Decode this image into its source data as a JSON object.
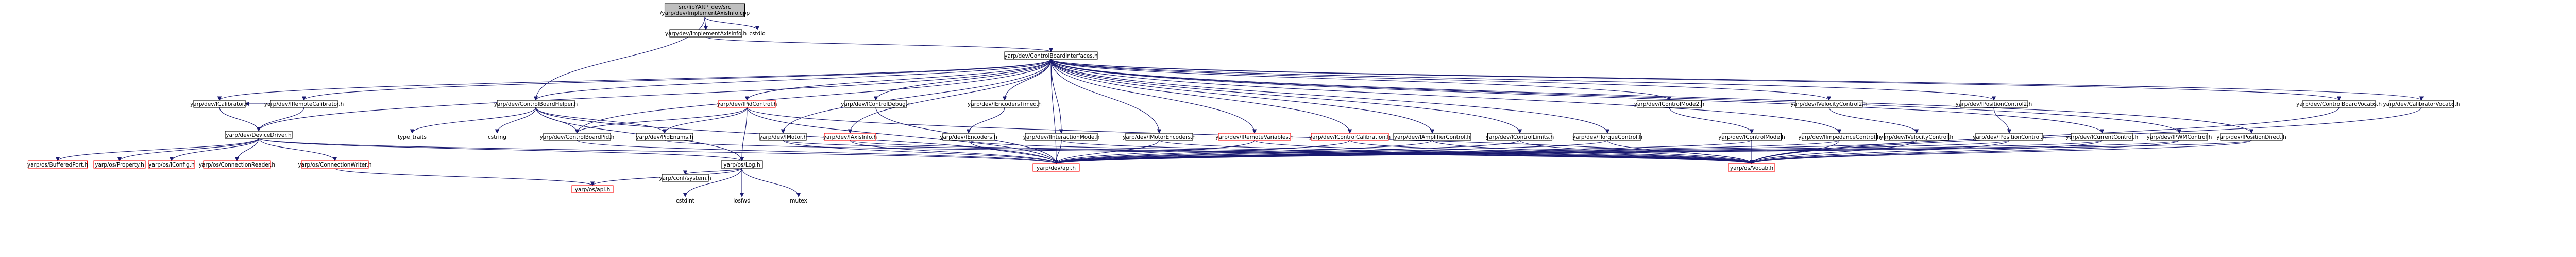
{
  "graph": {
    "root": "src/libYARP_dev/src/yarp/dev/ImplementAxisInfo.cpp",
    "nodes": [
      {
        "id": "root",
        "lines": [
          "src/libYARP_dev/src",
          "/yarp/dev/ImplementAxisInfo.cpp"
        ],
        "style": "root"
      },
      {
        "id": "impl",
        "lines": [
          "yarp/dev/ImplementAxisInfo.h"
        ],
        "style": "black"
      },
      {
        "id": "cstdio",
        "lines": [
          "cstdio"
        ],
        "style": "gray"
      },
      {
        "id": "cbi",
        "lines": [
          "yarp/dev/ControlBoardInterfaces.h"
        ],
        "style": "black"
      },
      {
        "id": "cbh",
        "lines": [
          "yarp/dev/ControlBoardHelper.h"
        ],
        "style": "black"
      },
      {
        "id": "calib",
        "lines": [
          "yarp/dev/ICalibrator.h"
        ],
        "style": "black"
      },
      {
        "id": "remcal",
        "lines": [
          "yarp/dev/IRemoteCalibrator.h"
        ],
        "style": "black"
      },
      {
        "id": "dd",
        "lines": [
          "yarp/dev/DeviceDriver.h"
        ],
        "style": "black"
      },
      {
        "id": "pid",
        "lines": [
          "yarp/dev/IPidControl.h"
        ],
        "style": "red"
      },
      {
        "id": "cdbg",
        "lines": [
          "yarp/dev/IControlDebug.h"
        ],
        "style": "black"
      },
      {
        "id": "enct",
        "lines": [
          "yarp/dev/IEncodersTimed.h"
        ],
        "style": "black"
      },
      {
        "id": "ts",
        "lines": [
          "type_traits"
        ],
        "style": "gray"
      },
      {
        "id": "cstring",
        "lines": [
          "cstring"
        ],
        "style": "gray"
      },
      {
        "id": "cbpid",
        "lines": [
          "yarp/dev/ControlBoardPid.h"
        ],
        "style": "black"
      },
      {
        "id": "pidenum",
        "lines": [
          "yarp/dev/PidEnums.h"
        ],
        "style": "black"
      },
      {
        "id": "motor",
        "lines": [
          "yarp/dev/IMotor.h"
        ],
        "style": "black"
      },
      {
        "id": "axisinfo",
        "lines": [
          "yarp/dev/IAxisInfo.h"
        ],
        "style": "red"
      },
      {
        "id": "enc",
        "lines": [
          "yarp/dev/IEncoders.h"
        ],
        "style": "black"
      },
      {
        "id": "imode",
        "lines": [
          "yarp/dev/IInteractionMode.h"
        ],
        "style": "black"
      },
      {
        "id": "menc",
        "lines": [
          "yarp/dev/IMotorEncoders.h"
        ],
        "style": "black"
      },
      {
        "id": "remvar",
        "lines": [
          "yarp/dev/IRemoteVariables.h"
        ],
        "style": "red"
      },
      {
        "id": "ccal",
        "lines": [
          "yarp/dev/IControlCalibration.h"
        ],
        "style": "red"
      },
      {
        "id": "amp",
        "lines": [
          "yarp/dev/IAmplifierControl.h"
        ],
        "style": "black"
      },
      {
        "id": "clim",
        "lines": [
          "yarp/dev/IControlLimits.h"
        ],
        "style": "black"
      },
      {
        "id": "torque",
        "lines": [
          "yarp/dev/ITorqueControl.h"
        ],
        "style": "black"
      },
      {
        "id": "cmode2",
        "lines": [
          "yarp/dev/IControlMode2.h"
        ],
        "style": "black"
      },
      {
        "id": "cmode",
        "lines": [
          "yarp/dev/IControlMode.h"
        ],
        "style": "black"
      },
      {
        "id": "imped",
        "lines": [
          "yarp/dev/IImpedanceControl.h"
        ],
        "style": "black"
      },
      {
        "id": "vel2",
        "lines": [
          "yarp/dev/IVelocityControl2.h"
        ],
        "style": "black"
      },
      {
        "id": "vel",
        "lines": [
          "yarp/dev/IVelocityControl.h"
        ],
        "style": "black"
      },
      {
        "id": "pos2",
        "lines": [
          "yarp/dev/IPositionControl2.h"
        ],
        "style": "black"
      },
      {
        "id": "pos",
        "lines": [
          "yarp/dev/IPositionControl.h"
        ],
        "style": "black"
      },
      {
        "id": "curr",
        "lines": [
          "yarp/dev/ICurrentControl.h"
        ],
        "style": "black"
      },
      {
        "id": "pwm",
        "lines": [
          "yarp/dev/IPWMControl.h"
        ],
        "style": "black"
      },
      {
        "id": "posdir",
        "lines": [
          "yarp/dev/IPositionDirect.h"
        ],
        "style": "black"
      },
      {
        "id": "cbvocab",
        "lines": [
          "yarp/dev/ControlBoardVocabs.h"
        ],
        "style": "black"
      },
      {
        "id": "calvocab",
        "lines": [
          "yarp/dev/CalibratorVocabs.h"
        ],
        "style": "black"
      },
      {
        "id": "bport",
        "lines": [
          "yarp/os/BufferedPort.h"
        ],
        "style": "red"
      },
      {
        "id": "prop",
        "lines": [
          "yarp/os/Property.h"
        ],
        "style": "red"
      },
      {
        "id": "iconfig",
        "lines": [
          "yarp/os/IConfig.h"
        ],
        "style": "red"
      },
      {
        "id": "creader",
        "lines": [
          "yarp/os/ConnectionReader.h"
        ],
        "style": "red"
      },
      {
        "id": "cwriter",
        "lines": [
          "yarp/os/ConnectionWriter.h"
        ],
        "style": "red"
      },
      {
        "id": "log",
        "lines": [
          "yarp/os/Log.h"
        ],
        "style": "black"
      },
      {
        "id": "sys",
        "lines": [
          "yarp/conf/system.h"
        ],
        "style": "black"
      },
      {
        "id": "osapi",
        "lines": [
          "yarp/os/api.h"
        ],
        "style": "red"
      },
      {
        "id": "devapi",
        "lines": [
          "yarp/dev/api.h"
        ],
        "style": "red"
      },
      {
        "id": "vocab",
        "lines": [
          "yarp/os/Vocab.h"
        ],
        "style": "red"
      },
      {
        "id": "cstdint",
        "lines": [
          "cstdint"
        ],
        "style": "gray"
      },
      {
        "id": "iosfwd",
        "lines": [
          "iosfwd"
        ],
        "style": "gray"
      },
      {
        "id": "mutex",
        "lines": [
          "mutex"
        ],
        "style": "gray"
      }
    ],
    "edges": [
      [
        "root",
        "impl"
      ],
      [
        "root",
        "cstdio"
      ],
      [
        "root",
        "cbh"
      ],
      [
        "impl",
        "cbi"
      ],
      [
        "cbi",
        "calib"
      ],
      [
        "cbi",
        "remcal"
      ],
      [
        "cbi",
        "dd"
      ],
      [
        "cbi",
        "cbh"
      ],
      [
        "cbi",
        "pid"
      ],
      [
        "cbi",
        "cdbg"
      ],
      [
        "cbi",
        "enct"
      ],
      [
        "cbi",
        "motor"
      ],
      [
        "cbi",
        "axisinfo"
      ],
      [
        "cbi",
        "imode"
      ],
      [
        "cbi",
        "menc"
      ],
      [
        "cbi",
        "remvar"
      ],
      [
        "cbi",
        "ccal"
      ],
      [
        "cbi",
        "amp"
      ],
      [
        "cbi",
        "clim"
      ],
      [
        "cbi",
        "torque"
      ],
      [
        "cbi",
        "cmode2"
      ],
      [
        "cbi",
        "imped"
      ],
      [
        "cbi",
        "vel2"
      ],
      [
        "cbi",
        "pos2"
      ],
      [
        "cbi",
        "curr"
      ],
      [
        "cbi",
        "pwm"
      ],
      [
        "cbi",
        "posdir"
      ],
      [
        "cbi",
        "cbvocab"
      ],
      [
        "cbi",
        "calvocab"
      ],
      [
        "cbi",
        "cbpid"
      ],
      [
        "cbi",
        "devapi"
      ],
      [
        "cbh",
        "ts"
      ],
      [
        "cbh",
        "cstring"
      ],
      [
        "cbh",
        "cbpid"
      ],
      [
        "cbh",
        "pidenum"
      ],
      [
        "cbh",
        "log"
      ],
      [
        "cbh",
        "devapi"
      ],
      [
        "calib",
        "dd"
      ],
      [
        "remcal",
        "dd"
      ],
      [
        "remcal",
        "calib"
      ],
      [
        "dd",
        "bport"
      ],
      [
        "dd",
        "prop"
      ],
      [
        "dd",
        "iconfig"
      ],
      [
        "dd",
        "creader"
      ],
      [
        "dd",
        "cwriter"
      ],
      [
        "dd",
        "log"
      ],
      [
        "dd",
        "devapi"
      ],
      [
        "cwriter",
        "osapi"
      ],
      [
        "pid",
        "cbpid"
      ],
      [
        "pid",
        "pidenum"
      ],
      [
        "pid",
        "log"
      ],
      [
        "pid",
        "devapi"
      ],
      [
        "pid",
        "vocab"
      ],
      [
        "cdbg",
        "devapi"
      ],
      [
        "enct",
        "enc"
      ],
      [
        "enc",
        "devapi"
      ],
      [
        "enc",
        "vocab"
      ],
      [
        "motor",
        "devapi"
      ],
      [
        "motor",
        "vocab"
      ],
      [
        "axisinfo",
        "devapi"
      ],
      [
        "axisinfo",
        "vocab"
      ],
      [
        "imode",
        "devapi"
      ],
      [
        "imode",
        "vocab"
      ],
      [
        "menc",
        "devapi"
      ],
      [
        "menc",
        "vocab"
      ],
      [
        "remvar",
        "devapi"
      ],
      [
        "remvar",
        "vocab"
      ],
      [
        "ccal",
        "devapi"
      ],
      [
        "ccal",
        "vocab"
      ],
      [
        "amp",
        "devapi"
      ],
      [
        "amp",
        "vocab"
      ],
      [
        "clim",
        "devapi"
      ],
      [
        "clim",
        "vocab"
      ],
      [
        "torque",
        "devapi"
      ],
      [
        "torque",
        "vocab"
      ],
      [
        "cmode2",
        "cmode"
      ],
      [
        "cmode",
        "devapi"
      ],
      [
        "cmode",
        "vocab"
      ],
      [
        "imped",
        "devapi"
      ],
      [
        "imped",
        "vocab"
      ],
      [
        "vel2",
        "vel"
      ],
      [
        "vel",
        "devapi"
      ],
      [
        "vel",
        "vocab"
      ],
      [
        "pos2",
        "pos"
      ],
      [
        "pos",
        "devapi"
      ],
      [
        "pos",
        "vocab"
      ],
      [
        "curr",
        "devapi"
      ],
      [
        "curr",
        "vocab"
      ],
      [
        "pwm",
        "devapi"
      ],
      [
        "pwm",
        "vocab"
      ],
      [
        "posdir",
        "devapi"
      ],
      [
        "posdir",
        "vocab"
      ],
      [
        "cbvocab",
        "vocab"
      ],
      [
        "calvocab",
        "vocab"
      ],
      [
        "pidenum",
        "vocab"
      ],
      [
        "cbpid",
        "devapi"
      ],
      [
        "log",
        "sys"
      ],
      [
        "log",
        "cstdint"
      ],
      [
        "log",
        "iosfwd"
      ],
      [
        "log",
        "mutex"
      ],
      [
        "log",
        "osapi"
      ]
    ]
  }
}
